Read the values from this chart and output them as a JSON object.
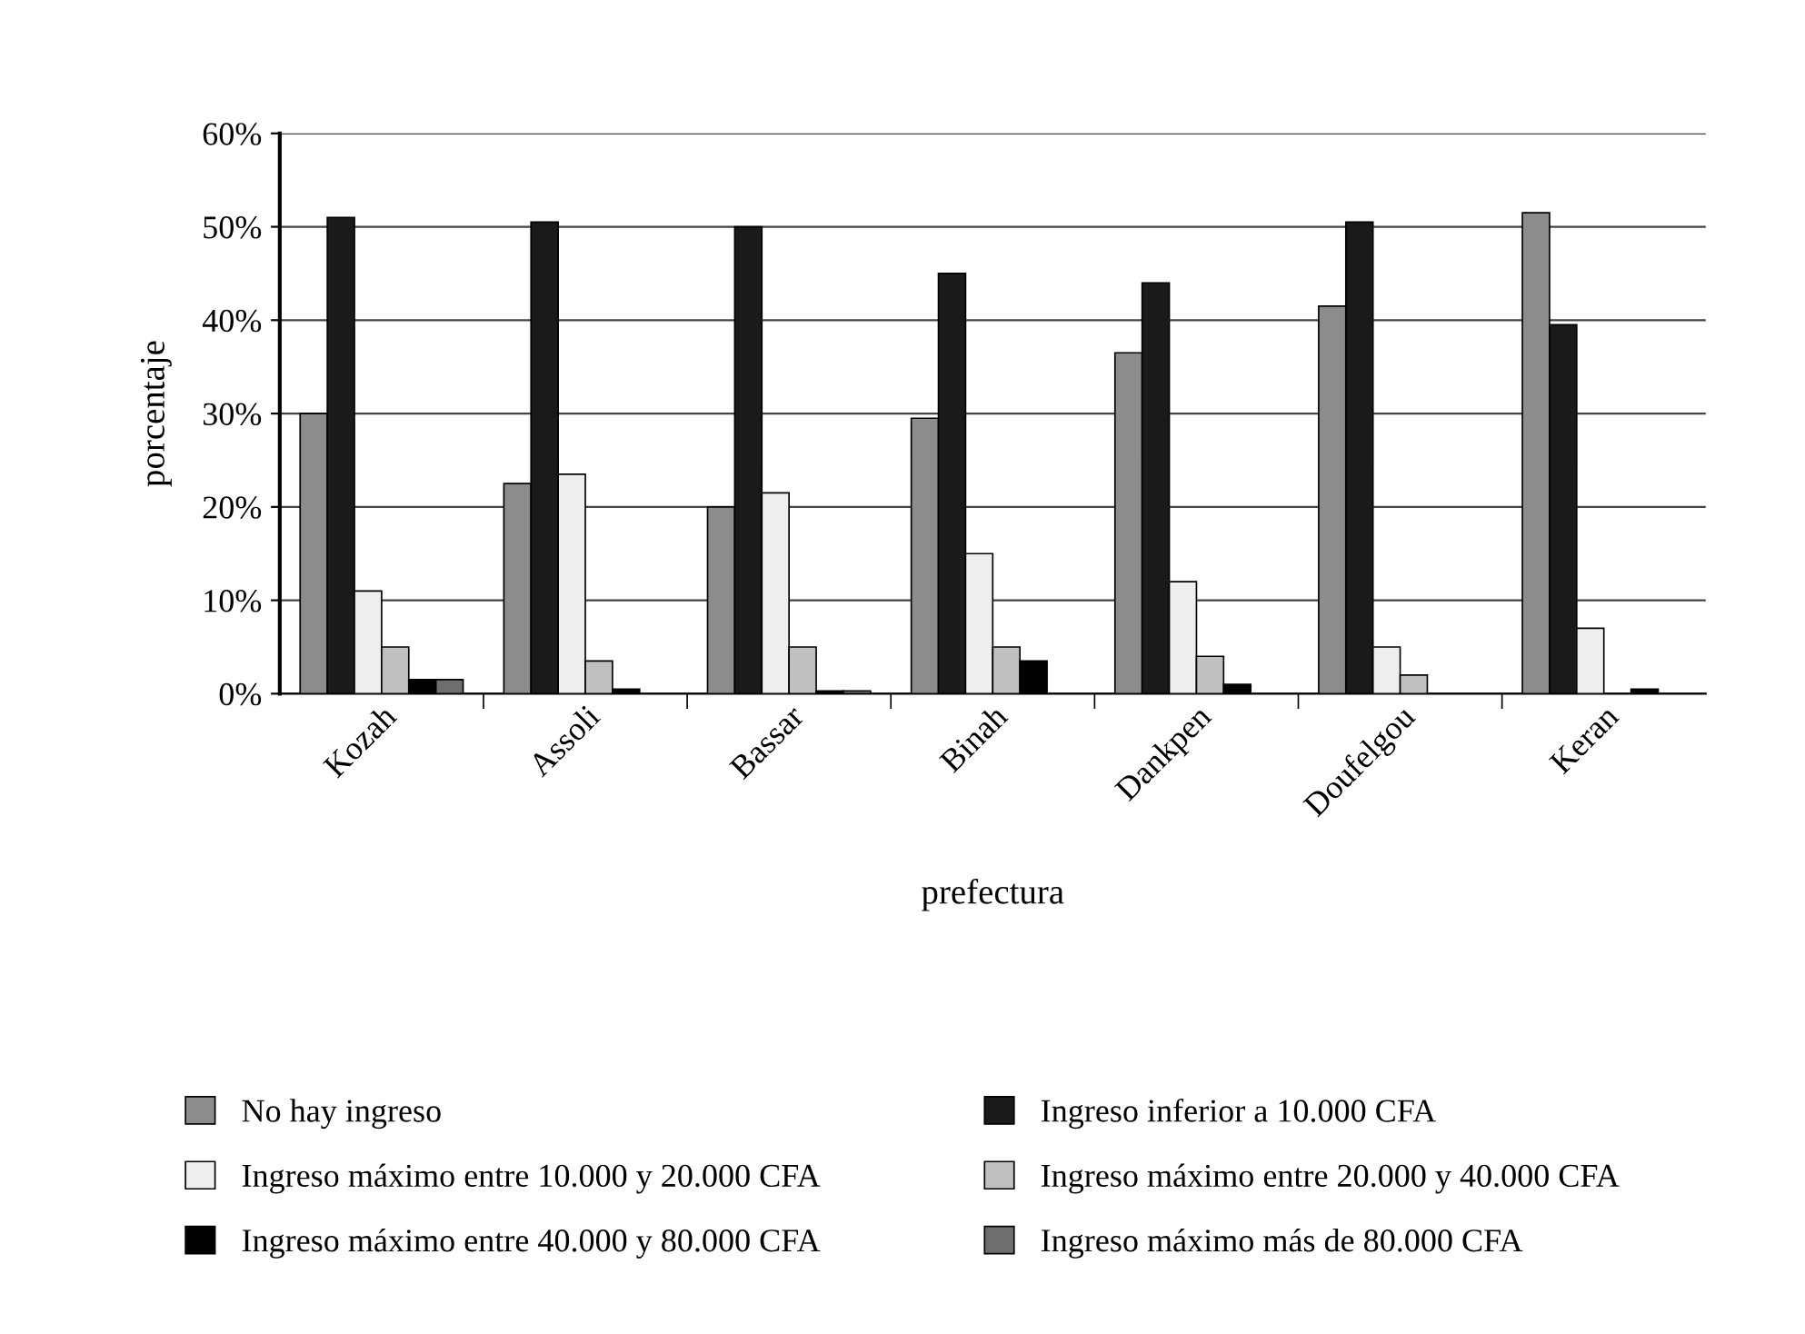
{
  "chart_data": {
    "type": "bar",
    "xlabel": "prefectura",
    "ylabel": "porcentaje",
    "categories": [
      "Kozah",
      "Assoli",
      "Bassar",
      "Binah",
      "Dankpen",
      "Doufelgou",
      "Keran"
    ],
    "series": [
      {
        "name": "No hay ingreso",
        "color": "#8c8c8c",
        "values": [
          30,
          22.5,
          20,
          29.5,
          36.5,
          41.5,
          51.5
        ]
      },
      {
        "name": "Ingreso inferior a 10.000 CFA",
        "color": "#1a1a1a",
        "values": [
          51,
          50.5,
          50,
          45,
          44,
          50.5,
          39.5
        ]
      },
      {
        "name": "Ingreso máximo entre 10.000 y 20.000 CFA",
        "color": "#eeeeee",
        "values": [
          11,
          23.5,
          21.5,
          15,
          12,
          5,
          7
        ]
      },
      {
        "name": "Ingreso máximo entre 20.000 y 40.000 CFA",
        "color": "#c0c0c0",
        "values": [
          5,
          3.5,
          5,
          5,
          4,
          2,
          null
        ]
      },
      {
        "name": "Ingreso máximo entre 40.000 y 80.000 CFA",
        "color": "#000000",
        "values": [
          1.5,
          0.5,
          0.3,
          3.5,
          1,
          null,
          0.5
        ]
      },
      {
        "name": "Ingreso máximo más de 80.000 CFA",
        "color": "#6e6e6e",
        "values": [
          1.5,
          null,
          0.3,
          null,
          null,
          null,
          null
        ]
      }
    ],
    "ylim": [
      0,
      60
    ],
    "yticks": [
      {
        "value": 0,
        "label": "0%"
      },
      {
        "value": 10,
        "label": "10%"
      },
      {
        "value": 20,
        "label": "20%"
      },
      {
        "value": 30,
        "label": "30%"
      },
      {
        "value": 40,
        "label": "40%"
      },
      {
        "value": 50,
        "label": "50%"
      },
      {
        "value": 60,
        "label": "60%"
      }
    ],
    "grid": "y",
    "legend": "bottom"
  }
}
